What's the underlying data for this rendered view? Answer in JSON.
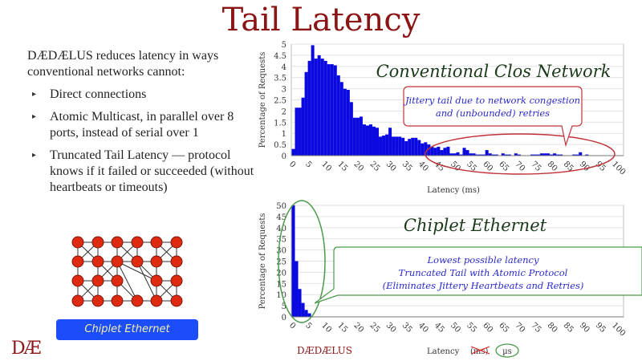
{
  "slide": {
    "title": "Tail Latency",
    "intro": "DÆDÆLUS reduces latency in ways conventional networks cannot:",
    "bullets": [
      "Direct connections",
      "Atomic Multicast, in parallel over 8 ports, instead of serial over 1",
      "Truncated Tail Latency — protocol knows if it failed or succeeded  (without heartbeats or timeouts)"
    ],
    "bullet_icon": "triangle-right-icon",
    "diagram_button": "Chiplet Ethernet",
    "logo": "DÆ",
    "brand": "DÆDÆLUS",
    "colors": {
      "title": "#8b1414",
      "bars": "#0a0ae0",
      "red_callout": "#c0333a",
      "green_callout": "#4a9a4a",
      "button": "#1b4dfb"
    }
  },
  "chart_data": [
    {
      "type": "bar",
      "title": "Conventional Clos Network",
      "xlabel": "Latency (ms)",
      "ylabel": "Percentage of Requests",
      "xlim": [
        0,
        103
      ],
      "ylim": [
        0,
        5
      ],
      "xticks": [
        "0",
        "5",
        "10",
        "15",
        "20",
        "25",
        "30",
        "35",
        "40",
        "45",
        "50",
        "55",
        "60",
        "65",
        "70",
        "75",
        "80",
        "85",
        "90",
        "95",
        "100"
      ],
      "yticks": [
        "0",
        "0.5",
        "1",
        "1.5",
        "2",
        "2.5",
        "3",
        "3.5",
        "4",
        "4.5",
        "5"
      ],
      "grid": true,
      "annotation": [
        "Jittery tail due to network congestion",
        "and (unbounded) retries"
      ],
      "values": [
        0.3,
        2.15,
        2.15,
        2.6,
        3.75,
        4.25,
        4.95,
        4.35,
        4.5,
        4.35,
        4.25,
        4.1,
        4.1,
        4.05,
        3.6,
        3.3,
        3.0,
        2.95,
        2.4,
        1.7,
        1.7,
        1.75,
        1.4,
        1.35,
        1.4,
        1.3,
        1.25,
        0.85,
        0.9,
        0.95,
        1.25,
        0.85,
        0.85,
        0.85,
        0.8,
        0.65,
        0.75,
        0.8,
        0.8,
        0.7,
        0.55,
        0.6,
        0.5,
        0.4,
        0.35,
        0.4,
        0.25,
        0.35,
        0.4,
        0.1,
        0.1,
        0.15,
        0.05,
        0.35,
        0.25,
        0.1,
        0.1,
        0.05,
        0.05,
        0.05,
        0.25,
        0.1,
        0.05,
        0.05,
        0,
        0.1,
        0.05,
        0.05,
        0,
        0.1,
        0.05,
        0,
        0,
        0,
        0.05,
        0.05,
        0.05,
        0.1,
        0.1,
        0.1,
        0.05,
        0.1,
        0.05,
        0.05,
        0,
        0,
        0,
        0.05,
        0.05,
        0.15,
        0,
        0.05,
        0,
        0,
        0,
        0,
        0,
        0,
        0,
        0,
        0,
        0,
        0
      ]
    },
    {
      "type": "bar",
      "title": "Chiplet Ethernet",
      "xlabel_prefix": "Latency",
      "xlabel_struck": "(ms)",
      "xlabel_unit": "µs",
      "ylabel": "Percentage of Requests",
      "xlim": [
        0,
        103
      ],
      "ylim": [
        0,
        50
      ],
      "xticks": [
        "0",
        "5",
        "10",
        "15",
        "20",
        "25",
        "30",
        "35",
        "40",
        "45",
        "50",
        "55",
        "60",
        "65",
        "70",
        "75",
        "80",
        "85",
        "90",
        "95",
        "100"
      ],
      "yticks": [
        "0",
        "5",
        "10",
        "15",
        "20",
        "25",
        "30",
        "35",
        "40",
        "45",
        "50"
      ],
      "grid": true,
      "annotation": [
        "Lowest possible latency",
        "Truncated Tail with Atomic Protocol",
        "(Eliminates Jittery Heartbeats and Retries)"
      ],
      "values": [
        50,
        25,
        12.5,
        6.25,
        3.1,
        1.6
      ]
    }
  ]
}
